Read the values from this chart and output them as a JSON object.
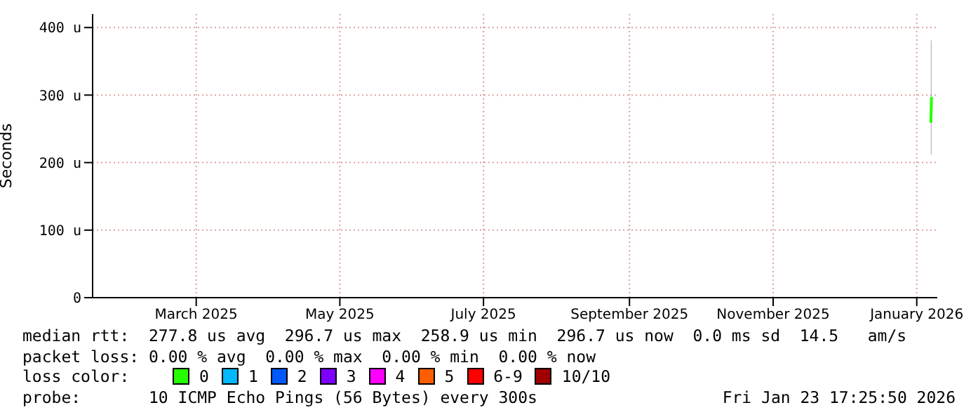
{
  "chart_data": {
    "type": "line",
    "ylabel": "Seconds",
    "xlim": [
      "2025-01-30",
      "2026-01-23T17:25"
    ],
    "xticks": [
      {
        "value": "2025-03-15",
        "label": "March 2025"
      },
      {
        "value": "2025-05-15",
        "label": "May 2025"
      },
      {
        "value": "2025-07-15",
        "label": "July 2025"
      },
      {
        "value": "2025-09-15",
        "label": "September 2025"
      },
      {
        "value": "2025-11-15",
        "label": "November 2025"
      },
      {
        "value": "2026-01-15",
        "label": "January 2026"
      }
    ],
    "ylim": [
      0,
      420
    ],
    "yticks": [
      0,
      {
        "value": 100,
        "label": "100 u"
      },
      {
        "value": 200,
        "label": "200 u"
      },
      {
        "value": 300,
        "label": "300 u"
      },
      {
        "value": 400,
        "label": "400 u"
      }
    ],
    "grid": true,
    "legend": "bottom",
    "marker": "none",
    "line_style": "solid",
    "series": [
      {
        "name": "0",
        "color": "#26ff00",
        "x": [
          "2026-01-21T00:00",
          "2026-01-21T06:00"
        ],
        "values": [
          259,
          297
        ],
        "lower": [
          212,
          212
        ],
        "upper": [
          381,
          381
        ]
      },
      {
        "name": "1",
        "color": "#00b8ff"
      },
      {
        "name": "2",
        "color": "#0059ff"
      },
      {
        "name": "3",
        "color": "#7e00ff"
      },
      {
        "name": "4",
        "color": "#ff00ff"
      },
      {
        "name": "5",
        "color": "#ff5e00"
      },
      {
        "name": "6-9",
        "color": "#ff0000"
      },
      {
        "name": "10/10",
        "color": "#a10000"
      }
    ],
    "annotations": [
      "median rtt:  277.8 us avg  296.7 us max  258.9 us min  296.7 us now  0.0 ms sd  14.5   am/s",
      "packet loss: 0.00 % avg  0.00 % max  0.00 % min  0.00 % now",
      "loss color:",
      "probe:       10 ICMP Echo Pings (56 Bytes) every 300s",
      "Fri Jan 23 17:25:50 2026"
    ]
  }
}
